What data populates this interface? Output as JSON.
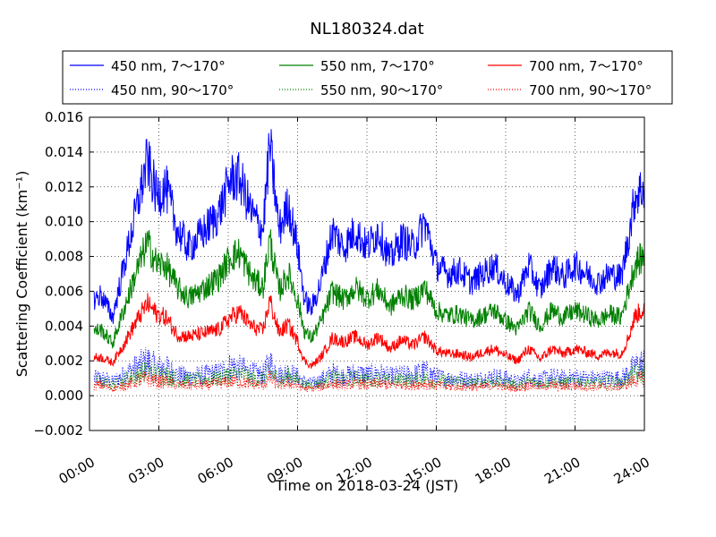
{
  "chart_data": {
    "type": "line",
    "title": "NL180324.dat",
    "xlabel": "Time on 2018-03-24 (JST)",
    "ylabel": "Scattering Coefficient (km⁻¹)",
    "xlim": [
      0,
      24
    ],
    "ylim": [
      -0.002,
      0.016
    ],
    "x_unit": "hours (JST)",
    "x_ticks": [
      0,
      3,
      6,
      9,
      12,
      15,
      18,
      21,
      24
    ],
    "x_tick_labels": [
      "00:00",
      "03:00",
      "06:00",
      "09:00",
      "12:00",
      "15:00",
      "18:00",
      "21:00",
      "24:00"
    ],
    "y_ticks": [
      -0.002,
      0.0,
      0.002,
      0.004,
      0.006,
      0.008,
      0.01,
      0.012,
      0.014,
      0.016
    ],
    "y_tick_labels": [
      "−0.002",
      "0.000",
      "0.002",
      "0.004",
      "0.006",
      "0.008",
      "0.010",
      "0.012",
      "0.014",
      "0.016"
    ],
    "grid": true,
    "legend_position": "top (above plot, 3 columns)",
    "x": [
      0.2,
      0.5,
      1,
      1.5,
      2,
      2.5,
      2.9,
      3.3,
      3.8,
      4.3,
      5,
      5.6,
      6.1,
      6.5,
      7,
      7.5,
      7.8,
      8.2,
      8.6,
      9,
      9.3,
      9.6,
      10,
      10.5,
      11,
      11.5,
      12,
      12.5,
      13,
      13.5,
      14,
      14.5,
      15,
      15.5,
      16,
      16.5,
      17,
      17.5,
      18,
      18.5,
      19,
      19.5,
      20,
      20.5,
      21,
      21.5,
      22,
      22.5,
      23,
      23.3,
      23.6,
      24
    ],
    "series": [
      {
        "name": "450 nm, 7～170°",
        "color": "#0000ff",
        "style": "solid",
        "values": [
          0.0055,
          0.0058,
          0.0045,
          0.0075,
          0.0105,
          0.0135,
          0.0115,
          0.012,
          0.0095,
          0.0085,
          0.0095,
          0.0105,
          0.0125,
          0.0125,
          0.0105,
          0.0095,
          0.0145,
          0.0095,
          0.011,
          0.0085,
          0.0055,
          0.005,
          0.0065,
          0.0095,
          0.0085,
          0.0095,
          0.0085,
          0.0095,
          0.0078,
          0.009,
          0.0085,
          0.01,
          0.0075,
          0.007,
          0.0072,
          0.0065,
          0.007,
          0.0075,
          0.0065,
          0.0058,
          0.0075,
          0.006,
          0.0075,
          0.0068,
          0.0075,
          0.007,
          0.0065,
          0.007,
          0.0068,
          0.009,
          0.0115,
          0.012
        ]
      },
      {
        "name": "450 nm, 90～170°",
        "color": "#0000ff",
        "style": "dotted",
        "values": [
          0.001,
          0.001,
          0.0008,
          0.0012,
          0.0016,
          0.002,
          0.0016,
          0.0016,
          0.0012,
          0.0011,
          0.0012,
          0.0013,
          0.0017,
          0.0016,
          0.0013,
          0.0012,
          0.0019,
          0.0012,
          0.0014,
          0.0011,
          0.0008,
          0.0007,
          0.0009,
          0.0013,
          0.0011,
          0.0013,
          0.0012,
          0.0013,
          0.0011,
          0.0012,
          0.0012,
          0.0014,
          0.0011,
          0.001,
          0.001,
          0.0009,
          0.001,
          0.0011,
          0.001,
          0.0008,
          0.0011,
          0.0009,
          0.0011,
          0.001,
          0.0011,
          0.001,
          0.001,
          0.001,
          0.001,
          0.0013,
          0.0017,
          0.0019
        ]
      },
      {
        "name": "550 nm, 7～170°",
        "color": "#008000",
        "style": "solid",
        "values": [
          0.0037,
          0.0038,
          0.003,
          0.005,
          0.007,
          0.0088,
          0.0076,
          0.0075,
          0.0062,
          0.0056,
          0.0062,
          0.0068,
          0.008,
          0.0082,
          0.0068,
          0.0062,
          0.009,
          0.006,
          0.007,
          0.0055,
          0.0037,
          0.0033,
          0.0042,
          0.006,
          0.0055,
          0.0062,
          0.0056,
          0.0061,
          0.0051,
          0.0058,
          0.0055,
          0.0062,
          0.0049,
          0.0046,
          0.0047,
          0.0043,
          0.0046,
          0.0049,
          0.0043,
          0.0038,
          0.0049,
          0.004,
          0.0049,
          0.0045,
          0.0049,
          0.0046,
          0.0043,
          0.0047,
          0.0045,
          0.006,
          0.0076,
          0.008
        ]
      },
      {
        "name": "550 nm, 90～170°",
        "color": "#008000",
        "style": "dotted",
        "values": [
          0.0008,
          0.0008,
          0.0006,
          0.0009,
          0.0012,
          0.0014,
          0.0012,
          0.0012,
          0.0009,
          0.0009,
          0.0009,
          0.001,
          0.0012,
          0.0012,
          0.001,
          0.0009,
          0.0014,
          0.0009,
          0.0011,
          0.0009,
          0.0006,
          0.0006,
          0.0007,
          0.001,
          0.0009,
          0.001,
          0.0009,
          0.001,
          0.0008,
          0.0009,
          0.0009,
          0.001,
          0.0008,
          0.0008,
          0.0008,
          0.0007,
          0.0008,
          0.0008,
          0.0007,
          0.0006,
          0.0008,
          0.0007,
          0.0008,
          0.0007,
          0.0008,
          0.0008,
          0.0007,
          0.0008,
          0.0007,
          0.001,
          0.0012,
          0.0013
        ]
      },
      {
        "name": "700 nm, 7～170°",
        "color": "#ff0000",
        "style": "solid",
        "values": [
          0.0022,
          0.0022,
          0.0019,
          0.003,
          0.0042,
          0.0053,
          0.0047,
          0.0045,
          0.0035,
          0.0034,
          0.0036,
          0.0038,
          0.0045,
          0.0048,
          0.004,
          0.0037,
          0.0055,
          0.0036,
          0.0041,
          0.0031,
          0.002,
          0.0017,
          0.0022,
          0.0033,
          0.0031,
          0.0034,
          0.0029,
          0.0034,
          0.0027,
          0.0032,
          0.0029,
          0.0034,
          0.0026,
          0.0024,
          0.0024,
          0.0022,
          0.0025,
          0.0027,
          0.0023,
          0.002,
          0.0027,
          0.0021,
          0.0027,
          0.0024,
          0.0027,
          0.0025,
          0.0023,
          0.0025,
          0.0024,
          0.0033,
          0.0046,
          0.005
        ]
      },
      {
        "name": "700 nm, 90～170°",
        "color": "#ff0000",
        "style": "dotted",
        "values": [
          0.0006,
          0.0006,
          0.0004,
          0.0006,
          0.0008,
          0.001,
          0.0008,
          0.0008,
          0.0006,
          0.0006,
          0.0006,
          0.0007,
          0.0008,
          0.0008,
          0.0007,
          0.0006,
          0.001,
          0.0006,
          0.0007,
          0.0006,
          0.0004,
          0.0004,
          0.0005,
          0.0007,
          0.0006,
          0.0007,
          0.0006,
          0.0007,
          0.0006,
          0.0006,
          0.0006,
          0.0007,
          0.0006,
          0.0005,
          0.0005,
          0.0005,
          0.0005,
          0.0006,
          0.0005,
          0.0004,
          0.0006,
          0.0005,
          0.0006,
          0.0005,
          0.0006,
          0.0005,
          0.0005,
          0.0005,
          0.0005,
          0.0007,
          0.0009,
          0.001
        ]
      }
    ]
  }
}
